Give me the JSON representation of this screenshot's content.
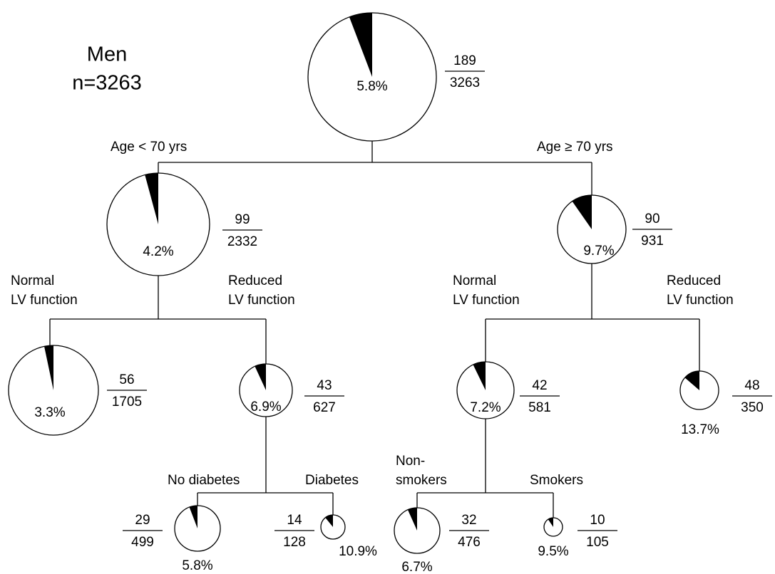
{
  "title": "Men",
  "subtitle": "n=3263",
  "nodes": [
    {
      "percent": 5.8,
      "percent_label": "5.8%",
      "events": 189,
      "total": 3263
    },
    {
      "percent": 4.2,
      "percent_label": "4.2%",
      "events": 99,
      "total": 2332
    },
    {
      "percent": 9.7,
      "percent_label": "9.7%",
      "events": 90,
      "total": 931
    },
    {
      "percent": 3.3,
      "percent_label": "3.3%",
      "events": 56,
      "total": 1705
    },
    {
      "percent": 6.9,
      "percent_label": "6.9%",
      "events": 43,
      "total": 627
    },
    {
      "percent": 7.2,
      "percent_label": "7.2%",
      "events": 42,
      "total": 581
    },
    {
      "percent": 13.7,
      "percent_label": "13.7%",
      "events": 48,
      "total": 350
    },
    {
      "percent": 5.8,
      "percent_label": "5.8%",
      "events": 29,
      "total": 499
    },
    {
      "percent": 10.9,
      "percent_label": "10.9%",
      "events": 14,
      "total": 128
    },
    {
      "percent": 6.7,
      "percent_label": "6.7%",
      "events": 32,
      "total": 476
    },
    {
      "percent": 9.5,
      "percent_label": "9.5%",
      "events": 10,
      "total": 105
    }
  ],
  "branches": [
    [
      "Age < 70 yrs"
    ],
    [
      "Age ≥ 70 yrs"
    ],
    [
      "Normal",
      "LV function"
    ],
    [
      "Reduced",
      "LV function"
    ],
    [
      "Normal",
      "LV function"
    ],
    [
      "Reduced",
      "LV function"
    ],
    [
      "No diabetes"
    ],
    [
      "Diabetes"
    ],
    [
      "Non-",
      "smokers"
    ],
    [
      "Smokers"
    ]
  ]
}
